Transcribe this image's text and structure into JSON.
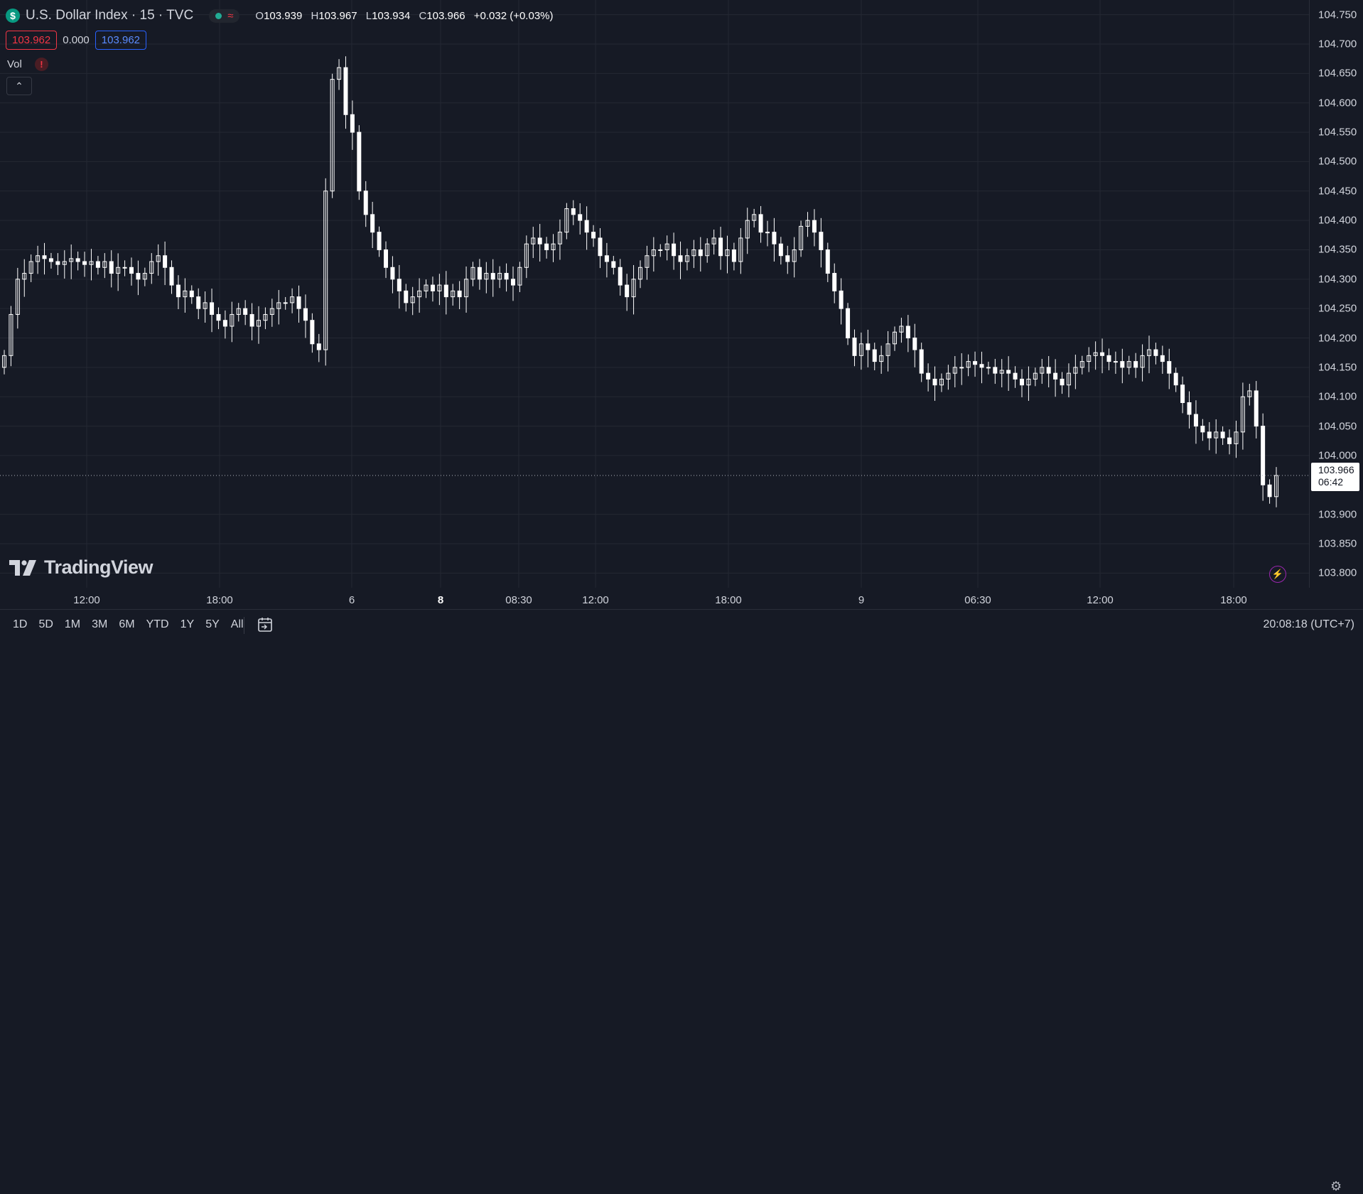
{
  "header": {
    "badge": "$",
    "title": "U.S. Dollar Index · 15 · TVC",
    "status_icon": "market-open-dot",
    "wave_icon": "≈",
    "ohlc": {
      "o_label": "O",
      "o_value": "103.939",
      "h_label": "H",
      "h_value": "103.967",
      "l_label": "L",
      "l_value": "103.934",
      "c_label": "C",
      "c_value": "103.966",
      "change": "+0.032 (+0.03%)"
    }
  },
  "quote": {
    "sell": "103.962",
    "spread": "0.000",
    "buy": "103.962"
  },
  "indicator": {
    "name": "Vol",
    "warning_icon": "!",
    "collapse_icon": "⌃"
  },
  "logo": {
    "text": "TradingView"
  },
  "price_axis": {
    "ticks": [
      "104.750",
      "104.700",
      "104.650",
      "104.600",
      "104.550",
      "104.500",
      "104.450",
      "104.400",
      "104.350",
      "104.300",
      "104.250",
      "104.200",
      "104.150",
      "104.100",
      "104.050",
      "104.000",
      "103.900",
      "103.850",
      "103.800"
    ],
    "current_price": "103.966",
    "countdown": "06:42",
    "colors": {
      "background": "#161a25",
      "grid": "#242833",
      "candle": "#ffffff",
      "current_line": "#b2b5be"
    }
  },
  "time_axis": {
    "labels": [
      "12:00",
      "18:00",
      "6",
      "8",
      "08:30",
      "12:00",
      "18:00",
      "9",
      "06:30",
      "12:00",
      "18:00"
    ],
    "bold_labels": [
      "8"
    ]
  },
  "bottom_bar": {
    "ranges": [
      "1D",
      "5D",
      "1M",
      "3M",
      "6M",
      "YTD",
      "1Y",
      "5Y",
      "All"
    ],
    "clock": "20:08:18 (UTC+7)"
  },
  "chart_data": {
    "type": "candlestick",
    "symbol": "U.S. Dollar Index",
    "interval": "15",
    "ylim": [
      103.775,
      104.775
    ],
    "x_labels": [
      "12:00",
      "18:00",
      "6",
      "8",
      "08:30",
      "12:00",
      "18:00",
      "9",
      "06:30",
      "12:00",
      "18:00"
    ],
    "close_path": [
      104.17,
      104.24,
      104.3,
      104.31,
      104.33,
      104.34,
      104.335,
      104.33,
      104.325,
      104.33,
      104.335,
      104.33,
      104.325,
      104.33,
      104.32,
      104.33,
      104.31,
      104.32,
      104.32,
      104.31,
      104.3,
      104.31,
      104.33,
      104.34,
      104.32,
      104.29,
      104.27,
      104.28,
      104.27,
      104.25,
      104.26,
      104.24,
      104.23,
      104.22,
      104.24,
      104.25,
      104.24,
      104.22,
      104.23,
      104.24,
      104.25,
      104.26,
      104.26,
      104.27,
      104.25,
      104.23,
      104.19,
      104.18,
      104.45,
      104.64,
      104.66,
      104.58,
      104.55,
      104.45,
      104.41,
      104.38,
      104.35,
      104.32,
      104.3,
      104.28,
      104.26,
      104.27,
      104.28,
      104.29,
      104.28,
      104.29,
      104.27,
      104.28,
      104.27,
      104.3,
      104.32,
      104.3,
      104.31,
      104.3,
      104.31,
      104.3,
      104.29,
      104.32,
      104.36,
      104.37,
      104.36,
      104.35,
      104.36,
      104.38,
      104.42,
      104.41,
      104.4,
      104.38,
      104.37,
      104.34,
      104.33,
      104.32,
      104.29,
      104.27,
      104.3,
      104.32,
      104.34,
      104.35,
      104.35,
      104.36,
      104.34,
      104.33,
      104.34,
      104.35,
      104.34,
      104.36,
      104.37,
      104.34,
      104.35,
      104.33,
      104.37,
      104.4,
      104.41,
      104.38,
      104.38,
      104.36,
      104.34,
      104.33,
      104.35,
      104.39,
      104.4,
      104.38,
      104.35,
      104.31,
      104.28,
      104.25,
      104.2,
      104.17,
      104.19,
      104.18,
      104.16,
      104.17,
      104.19,
      104.21,
      104.22,
      104.2,
      104.18,
      104.14,
      104.13,
      104.12,
      104.13,
      104.14,
      104.15,
      104.15,
      104.16,
      104.155,
      104.15,
      104.15,
      104.14,
      104.145,
      104.14,
      104.13,
      104.12,
      104.13,
      104.14,
      104.15,
      104.14,
      104.13,
      104.12,
      104.14,
      104.15,
      104.16,
      104.17,
      104.175,
      104.17,
      104.16,
      104.16,
      104.15,
      104.16,
      104.15,
      104.17,
      104.18,
      104.17,
      104.16,
      104.14,
      104.12,
      104.09,
      104.07,
      104.05,
      104.04,
      104.03,
      104.04,
      104.03,
      104.02,
      104.04,
      104.1,
      104.11,
      104.05,
      103.95,
      103.93,
      103.966
    ]
  }
}
